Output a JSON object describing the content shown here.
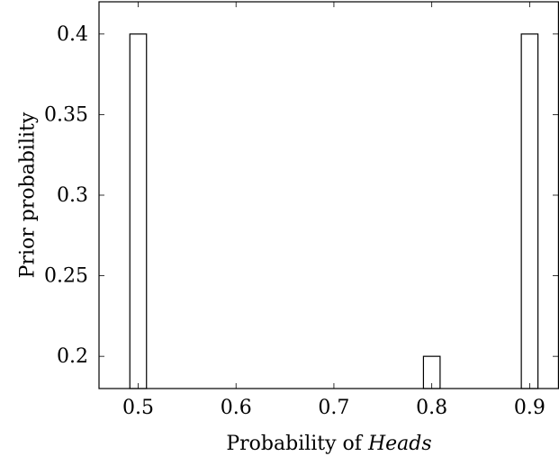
{
  "chart_data": {
    "type": "bar",
    "x": [
      0.5,
      0.8,
      0.9
    ],
    "values": [
      0.4,
      0.2,
      0.4
    ],
    "xlabel_prefix": "Probability of ",
    "xlabel_emph": "Heads",
    "ylabel": "Prior probability",
    "xlim": [
      0.46,
      0.93
    ],
    "ylim": [
      0.18,
      0.42
    ],
    "xticks": [
      0.5,
      0.6,
      0.7,
      0.8,
      0.9
    ],
    "xtick_labels": [
      "0.5",
      "0.6",
      "0.7",
      "0.8",
      "0.9"
    ],
    "yticks": [
      0.2,
      0.25,
      0.3,
      0.35,
      0.4
    ],
    "ytick_labels": [
      "0.2",
      "0.25",
      "0.3",
      "0.35",
      "0.4"
    ],
    "bar_width": 0.017,
    "grid": false,
    "legend": "none"
  }
}
